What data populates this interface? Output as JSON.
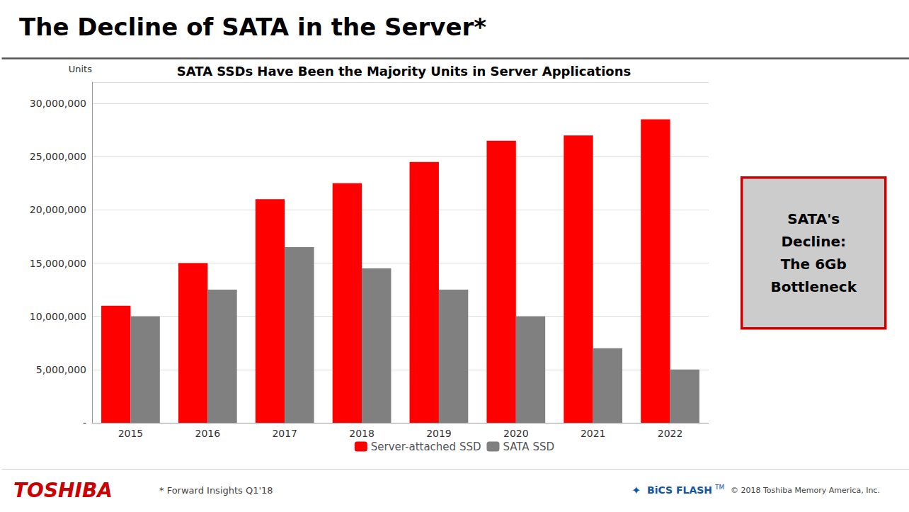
{
  "chart_data": {
    "type": "bar",
    "title": "The Decline of SATA in the Server*",
    "subtitle": "SATA SSDs Have Been the Majority Units in Server Applications",
    "ylabel": "Units",
    "categories": [
      "2015",
      "2016",
      "2017",
      "2018",
      "2019",
      "2020",
      "2021",
      "2022"
    ],
    "series": [
      {
        "name": "Server-attached SSD",
        "color": "#FF0000",
        "values": [
          11000000,
          15000000,
          21000000,
          22500000,
          24500000,
          26500000,
          27000000,
          28500000
        ]
      },
      {
        "name": "SATA SSD",
        "color": "#808080",
        "values": [
          10000000,
          12500000,
          16500000,
          14500000,
          12500000,
          10000000,
          7000000,
          5000000
        ]
      }
    ],
    "ylim": [
      0,
      32000000
    ],
    "yticks": [
      {
        "value": 0,
        "label": "-"
      },
      {
        "value": 5000000,
        "label": "5,000,000"
      },
      {
        "value": 10000000,
        "label": "10,000,000"
      },
      {
        "value": 15000000,
        "label": "15,000,000"
      },
      {
        "value": 20000000,
        "label": "20,000,000"
      },
      {
        "value": 25000000,
        "label": "25,000,000"
      },
      {
        "value": 30000000,
        "label": "30,000,000"
      }
    ],
    "grid": true,
    "legend": "bottom",
    "annotations": [
      "SATA's\nDecline:\nThe 6Gb\nBottleneck",
      "TOSHIBA",
      "* Forward Insights Q1'18",
      "✦",
      "BiCS FLASH",
      "TM",
      "© 2018 Toshiba Memory America, Inc."
    ]
  }
}
